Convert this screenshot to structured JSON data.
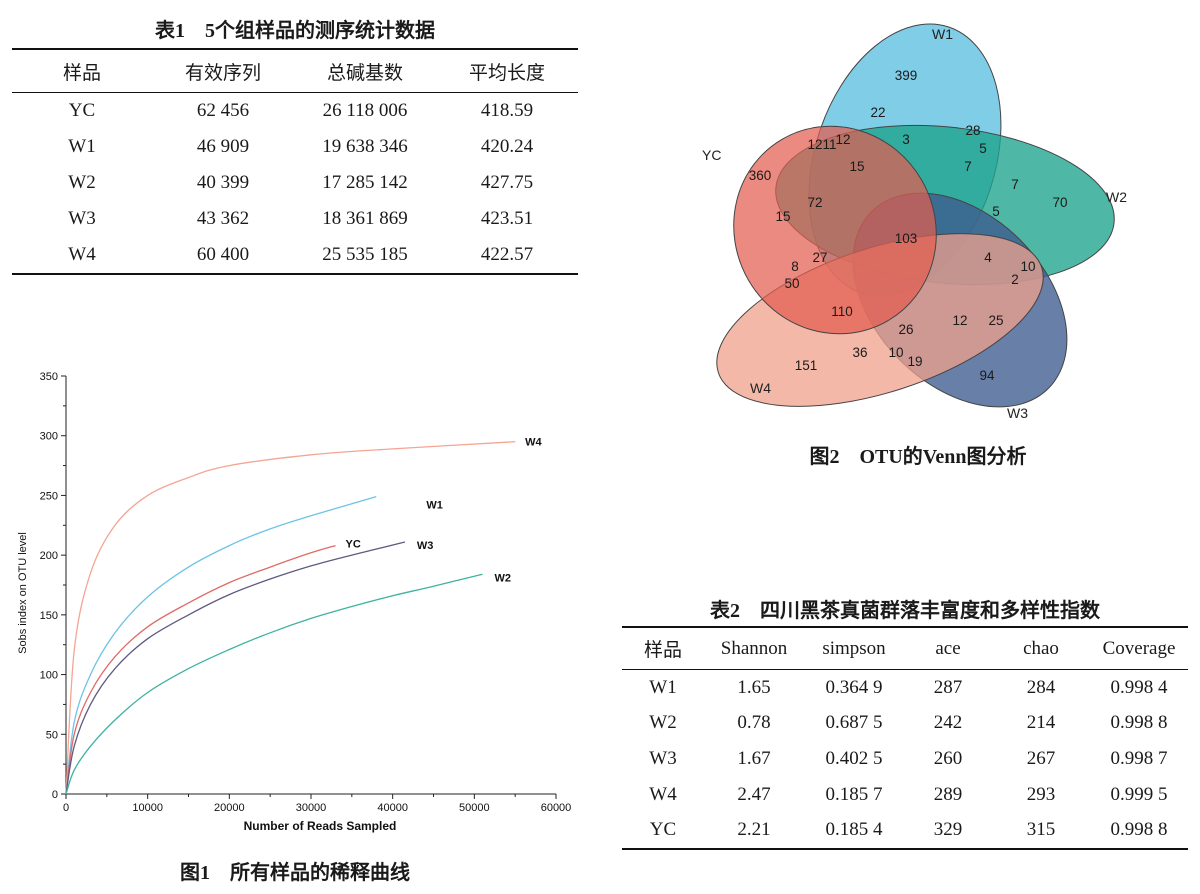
{
  "table1": {
    "caption": "表1　5个组样品的测序统计数据",
    "headers": [
      "样品",
      "有效序列",
      "总碱基数",
      "平均长度"
    ],
    "rows": [
      [
        "YC",
        "62 456",
        "26 118 006",
        "418.59"
      ],
      [
        "W1",
        "46 909",
        "19 638 346",
        "420.24"
      ],
      [
        "W2",
        "40 399",
        "17 285 142",
        "427.75"
      ],
      [
        "W3",
        "43 362",
        "18 361 869",
        "423.51"
      ],
      [
        "W4",
        "60 400",
        "25 535 185",
        "422.57"
      ]
    ]
  },
  "table2": {
    "caption": "表2　四川黑茶真菌群落丰富度和多样性指数",
    "headers": [
      "样品",
      "Shannon",
      "simpson",
      "ace",
      "chao",
      "Coverage"
    ],
    "rows": [
      [
        "W1",
        "1.65",
        "0.364 9",
        "287",
        "284",
        "0.998 4"
      ],
      [
        "W2",
        "0.78",
        "0.687 5",
        "242",
        "214",
        "0.998 8"
      ],
      [
        "W3",
        "1.67",
        "0.402 5",
        "260",
        "267",
        "0.998 7"
      ],
      [
        "W4",
        "2.47",
        "0.185 7",
        "289",
        "293",
        "0.999 5"
      ],
      [
        "YC",
        "2.21",
        "0.185 4",
        "329",
        "315",
        "0.998 8"
      ]
    ]
  },
  "figure1": {
    "caption": "图1　所有样品的稀释曲线"
  },
  "figure2": {
    "caption": "图2　OTU的Venn图分析",
    "set_labels": [
      "W1",
      "W2",
      "W3",
      "W4",
      "YC"
    ],
    "region_counts": [
      "399",
      "22",
      "28",
      "3",
      "12",
      "1211",
      "15",
      "5",
      "7",
      "7",
      "360",
      "70",
      "72",
      "15",
      "5",
      "103",
      "8",
      "27",
      "4",
      "10",
      "50",
      "2",
      "110",
      "12",
      "25",
      "26",
      "36",
      "10",
      "19",
      "151",
      "94"
    ]
  },
  "chart_data": {
    "type": "line",
    "title": "",
    "xlabel": "Number of Reads Sampled",
    "ylabel": "Sobs index on OTU level",
    "xlim": [
      0,
      60000
    ],
    "ylim": [
      0,
      350
    ],
    "xticks": [
      "0",
      "10000",
      "20000",
      "30000",
      "40000",
      "50000",
      "60000"
    ],
    "yticks": [
      "0",
      "50",
      "100",
      "150",
      "200",
      "250",
      "300",
      "350"
    ],
    "grid": false,
    "series": [
      {
        "name": "W4",
        "color": "#f4a593",
        "x": [
          0,
          1000,
          3000,
          6000,
          10000,
          15000,
          20000,
          30000,
          40000,
          55000
        ],
        "y": [
          0,
          120,
          185,
          225,
          250,
          265,
          275,
          284,
          289,
          295
        ]
      },
      {
        "name": "W1",
        "color": "#6cc3e6",
        "x": [
          0,
          1000,
          3000,
          6000,
          10000,
          15000,
          20000,
          25000,
          30000,
          38000
        ],
        "y": [
          0,
          60,
          100,
          135,
          165,
          190,
          208,
          222,
          233,
          249
        ]
      },
      {
        "name": "YC",
        "color": "#e06a65",
        "x": [
          0,
          1000,
          3000,
          6000,
          10000,
          15000,
          20000,
          25000,
          30000,
          33000
        ],
        "y": [
          0,
          50,
          85,
          115,
          140,
          160,
          177,
          190,
          202,
          208
        ]
      },
      {
        "name": "W3",
        "color": "#5e5a82",
        "x": [
          0,
          1000,
          3000,
          6000,
          10000,
          15000,
          20000,
          25000,
          30000,
          35000,
          41500
        ],
        "y": [
          0,
          40,
          75,
          105,
          130,
          150,
          167,
          180,
          191,
          200,
          211
        ]
      },
      {
        "name": "W2",
        "color": "#3db3a0",
        "x": [
          0,
          1000,
          3000,
          6000,
          10000,
          15000,
          20000,
          25000,
          30000,
          35000,
          40000,
          45000,
          51000
        ],
        "y": [
          0,
          20,
          40,
          62,
          85,
          105,
          121,
          135,
          147,
          157,
          166,
          174,
          184
        ]
      }
    ]
  }
}
